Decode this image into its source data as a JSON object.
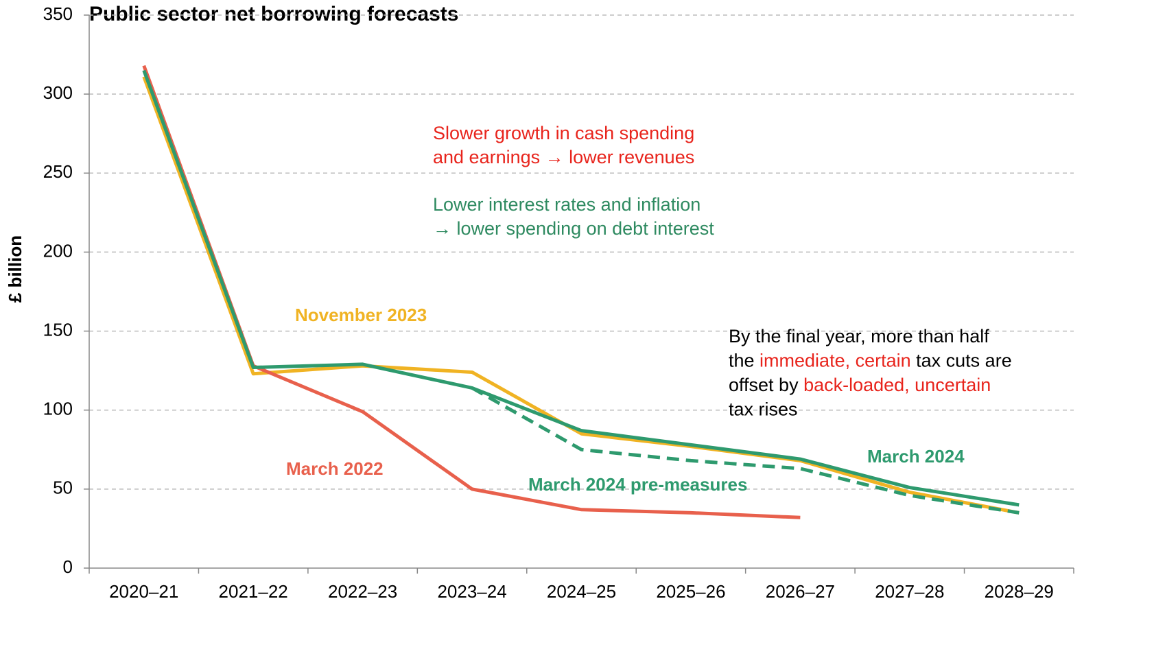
{
  "chart_data": {
    "type": "line",
    "title": "Public sector net borrowing forecasts",
    "y_label": "£ billion",
    "categories": [
      "2020–21",
      "2021–22",
      "2022–23",
      "2023–24",
      "2024–25",
      "2025–26",
      "2026–27",
      "2027–28",
      "2028–29"
    ],
    "ylim": [
      0,
      350
    ],
    "yticks": [
      0,
      50,
      100,
      150,
      200,
      250,
      300,
      350
    ],
    "grid": true,
    "series": [
      {
        "name": "November 2023",
        "color": "#f0b323",
        "dash": false,
        "values": [
          311,
          123,
          128,
          124,
          85,
          77,
          68,
          48,
          35
        ]
      },
      {
        "name": "March 2022",
        "color": "#e8604c",
        "dash": false,
        "values": [
          318,
          128,
          99,
          50,
          37,
          35,
          32,
          null,
          null
        ]
      },
      {
        "name": "March 2024 pre-measures",
        "color": "#2e9a6e",
        "dash": true,
        "values": [
          null,
          null,
          null,
          114,
          75,
          68,
          63,
          46,
          35
        ]
      },
      {
        "name": "March 2024",
        "color": "#2e9a6e",
        "dash": false,
        "values": [
          315,
          127,
          129,
          114,
          87,
          78,
          69,
          51,
          40
        ]
      }
    ],
    "annotations": [
      {
        "lines": [
          [
            {
              "text": "Slower growth in cash spending",
              "color": "#e8241c"
            }
          ],
          [
            {
              "text": "and earnings → lower revenues",
              "color": "#e8241c"
            }
          ]
        ]
      },
      {
        "lines": [
          [
            {
              "text": "Lower interest rates and inflation",
              "color": "#2e8a60"
            }
          ],
          [
            {
              "text": "→ lower spending on debt interest",
              "color": "#2e8a60"
            }
          ]
        ]
      },
      {
        "lines": [
          [
            {
              "text": "By the final year, more than half",
              "color": "#000000"
            }
          ],
          [
            {
              "text": "the ",
              "color": "#000000"
            },
            {
              "text": "immediate, certain",
              "color": "#e8241c"
            },
            {
              "text": " tax cuts are",
              "color": "#000000"
            }
          ],
          [
            {
              "text": "offset by ",
              "color": "#000000"
            },
            {
              "text": "back-loaded, uncertain",
              "color": "#e8241c"
            }
          ],
          [
            {
              "text": "tax rises",
              "color": "#000000"
            }
          ]
        ]
      }
    ]
  }
}
